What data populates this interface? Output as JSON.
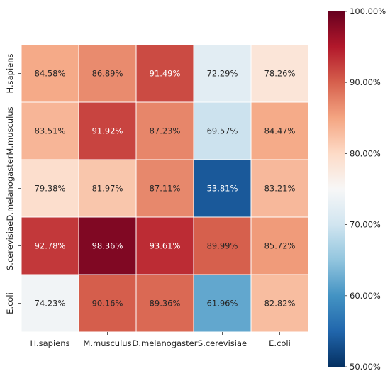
{
  "chart_data": {
    "type": "heatmap",
    "title": "",
    "xlabel": "",
    "ylabel": "",
    "x_categories": [
      "H.sapiens",
      "M.musculus",
      "D.melanogaster",
      "S.cerevisiae",
      "E.coli"
    ],
    "y_categories": [
      "H.sapiens",
      "M.musculus",
      "D.melanogaster",
      "S.cerevisiae",
      "E.coli"
    ],
    "values": [
      [
        84.58,
        86.89,
        91.49,
        72.29,
        78.26
      ],
      [
        83.51,
        91.92,
        87.23,
        69.57,
        84.47
      ],
      [
        79.38,
        81.97,
        87.11,
        53.81,
        83.21
      ],
      [
        92.78,
        98.36,
        93.61,
        89.99,
        85.72
      ],
      [
        74.23,
        90.16,
        89.36,
        61.96,
        82.82
      ]
    ],
    "cell_labels": [
      [
        "84.58%",
        "86.89%",
        "91.49%",
        "72.29%",
        "78.26%"
      ],
      [
        "83.51%",
        "91.92%",
        "87.23%",
        "69.57%",
        "84.47%"
      ],
      [
        "79.38%",
        "81.97%",
        "87.11%",
        "53.81%",
        "83.21%"
      ],
      [
        "92.78%",
        "98.36%",
        "93.61%",
        "89.99%",
        "85.72%"
      ],
      [
        "74.23%",
        "90.16%",
        "89.36%",
        "61.96%",
        "82.82%"
      ]
    ],
    "colormap": "RdBu_r",
    "vmin": 50,
    "vmax": 100,
    "colorbar_ticks": [
      50,
      60,
      70,
      80,
      90,
      100
    ],
    "colorbar_tick_labels": [
      "50.00%",
      "60.00%",
      "70.00%",
      "80.00%",
      "90.00%",
      "100.00%"
    ],
    "colorbar_position": "right",
    "grid": false
  }
}
